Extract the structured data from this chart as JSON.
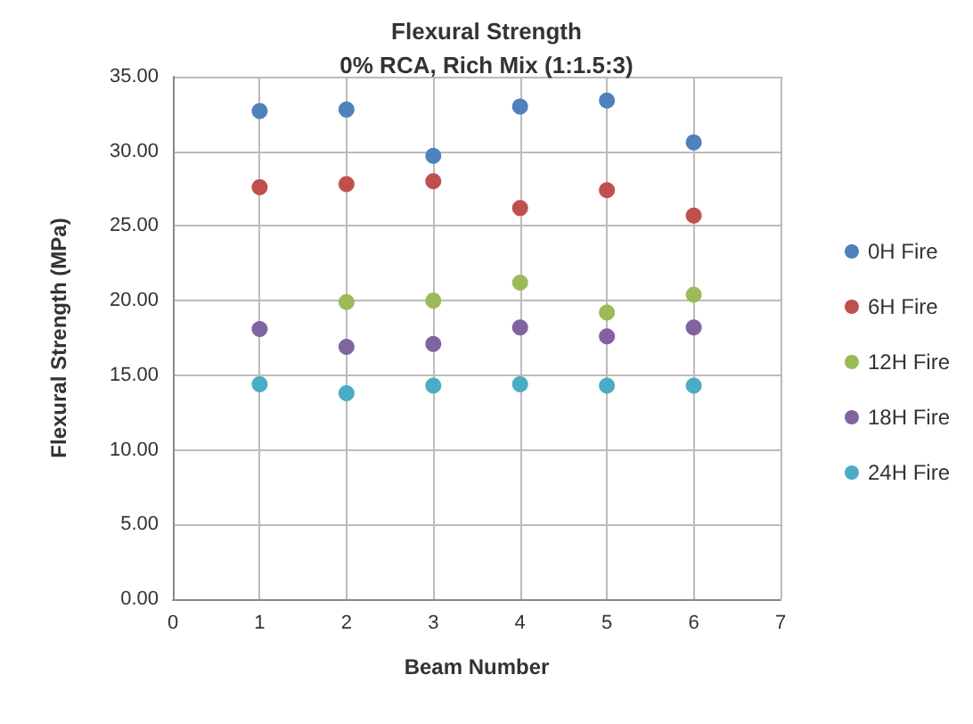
{
  "chart_data": {
    "type": "scatter",
    "title": "Flexural Strength",
    "subtitle": "0% RCA, Rich Mix (1:1.5:3)",
    "xlabel": "Beam Number",
    "ylabel": "Flexural Strength (MPa)",
    "x": [
      1,
      2,
      3,
      4,
      5,
      6
    ],
    "series": [
      {
        "name": "0H Fire",
        "color": "#4f81bd",
        "values": [
          32.7,
          32.8,
          29.7,
          33.0,
          33.4,
          30.6
        ]
      },
      {
        "name": "6H Fire",
        "color": "#c0504d",
        "values": [
          27.6,
          27.8,
          28.0,
          26.2,
          27.4,
          25.7
        ]
      },
      {
        "name": "12H Fire",
        "color": "#9bbb59",
        "values": [
          null,
          19.9,
          20.0,
          21.2,
          19.2,
          20.4
        ]
      },
      {
        "name": "18H Fire",
        "color": "#8064a2",
        "values": [
          18.1,
          16.9,
          17.1,
          18.2,
          17.6,
          18.2
        ]
      },
      {
        "name": "24H Fire",
        "color": "#4bacc6",
        "values": [
          14.4,
          13.8,
          14.3,
          14.4,
          14.3,
          14.3
        ]
      }
    ],
    "xlim": [
      0,
      7
    ],
    "xticks": [
      0,
      1,
      2,
      3,
      4,
      5,
      6,
      7
    ],
    "ylim": [
      0,
      35
    ],
    "yticks": [
      {
        "value": 0,
        "label": "0.00"
      },
      {
        "value": 5,
        "label": "5.00"
      },
      {
        "value": 10,
        "label": "10.00"
      },
      {
        "value": 15,
        "label": "15.00"
      },
      {
        "value": 20,
        "label": "20.00"
      },
      {
        "value": 25,
        "label": "25.00"
      },
      {
        "value": 30,
        "label": "30.00"
      },
      {
        "value": 35,
        "label": "35.00"
      }
    ],
    "grid": true,
    "legend": "right",
    "marker": "circle"
  }
}
